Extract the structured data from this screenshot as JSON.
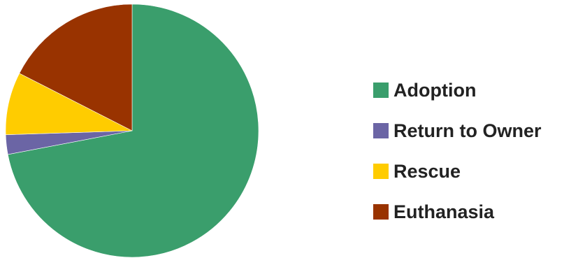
{
  "chart_data": {
    "type": "pie",
    "title": "",
    "categories": [
      "Adoption",
      "Return to Owner",
      "Rescue",
      "Euthanasia"
    ],
    "values": [
      72,
      2.5,
      8,
      17.5
    ],
    "unit": "%",
    "colors": [
      "#3A9E6C",
      "#6B65A5",
      "#FFCC00",
      "#993300"
    ],
    "start_angle": "12 o'clock",
    "direction": "clockwise",
    "legend_position": "right",
    "legend": [
      {
        "label": "Adoption",
        "color": "#3A9E6C"
      },
      {
        "label": "Return to Owner",
        "color": "#6B65A5"
      },
      {
        "label": "Rescue",
        "color": "#FFCC00"
      },
      {
        "label": "Euthanasia",
        "color": "#993300"
      }
    ]
  }
}
